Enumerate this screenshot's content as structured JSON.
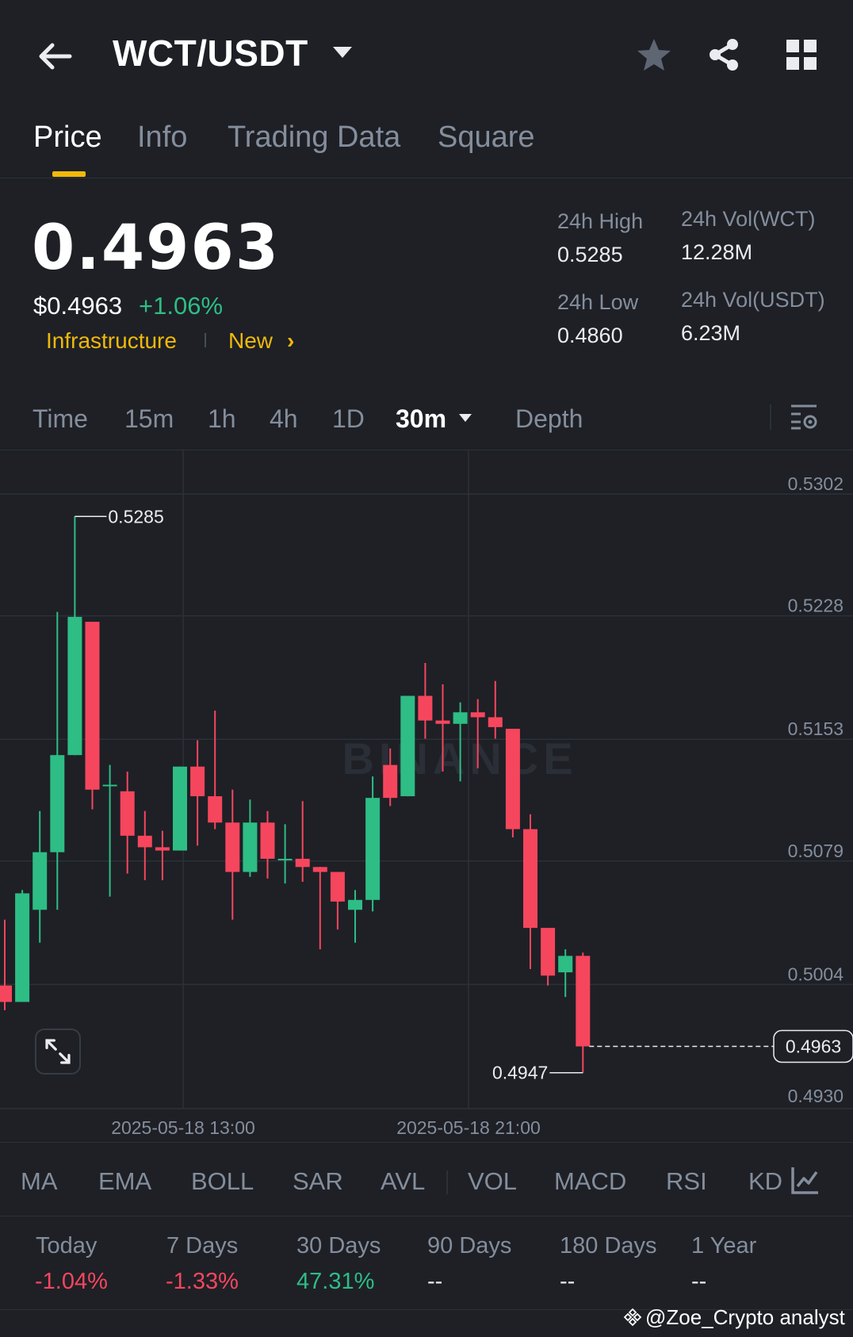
{
  "header": {
    "pair": "WCT/USDT",
    "icons": [
      "back-arrow-icon",
      "caret-down-icon",
      "star-icon",
      "share-icon",
      "grid-icon"
    ]
  },
  "tabs": [
    {
      "label": "Price",
      "active": true
    },
    {
      "label": "Info",
      "active": false
    },
    {
      "label": "Trading Data",
      "active": false
    },
    {
      "label": "Square",
      "active": false
    }
  ],
  "ticker": {
    "last_price": "0.4963",
    "usd_price": "$0.4963",
    "change_pct": "+1.06%",
    "tags": [
      "Infrastructure",
      "New"
    ],
    "chevron": "›",
    "high_label": "24h High",
    "high_value": "0.5285",
    "low_label": "24h Low",
    "low_value": "0.4860",
    "vol_wct_label": "24h Vol(WCT)",
    "vol_wct_value": "12.28M",
    "vol_usdt_label": "24h Vol(USDT)",
    "vol_usdt_value": "6.23M"
  },
  "intervals": [
    {
      "label": "Time",
      "active": false
    },
    {
      "label": "15m",
      "active": false
    },
    {
      "label": "1h",
      "active": false
    },
    {
      "label": "4h",
      "active": false
    },
    {
      "label": "1D",
      "active": false
    },
    {
      "label": "30m",
      "active": true
    },
    {
      "label": "Depth",
      "active": false
    }
  ],
  "chart_data": {
    "type": "candlestick",
    "interval": "30m",
    "y_ticks": [
      "0.5302",
      "0.5228",
      "0.5153",
      "0.5079",
      "0.5004",
      "0.4930"
    ],
    "ylim": [
      0.493,
      0.5302
    ],
    "x_ticks": [
      "2025-05-18 13:00",
      "2025-05-18 21:00"
    ],
    "current_price": "0.4963",
    "high_marker": "0.5285",
    "low_marker": "0.4947",
    "watermark": "BINANCE",
    "up_color": "#2ebd85",
    "down_color": "#f6465d",
    "candles": [
      {
        "o": 0.5,
        "h": 0.504,
        "l": 0.4985,
        "c": 0.499
      },
      {
        "o": 0.499,
        "h": 0.5058,
        "l": 0.499,
        "c": 0.5056
      },
      {
        "o": 0.5046,
        "h": 0.5106,
        "l": 0.5026,
        "c": 0.5081
      },
      {
        "o": 0.5081,
        "h": 0.5227,
        "l": 0.5046,
        "c": 0.514
      },
      {
        "o": 0.514,
        "h": 0.5285,
        "l": 0.514,
        "c": 0.5224
      },
      {
        "o": 0.5221,
        "h": 0.5221,
        "l": 0.5107,
        "c": 0.5119
      },
      {
        "o": 0.5122,
        "h": 0.5134,
        "l": 0.5054,
        "c": 0.5122
      },
      {
        "o": 0.5118,
        "h": 0.513,
        "l": 0.5068,
        "c": 0.5091
      },
      {
        "o": 0.5091,
        "h": 0.5106,
        "l": 0.5064,
        "c": 0.5084
      },
      {
        "o": 0.5084,
        "h": 0.5094,
        "l": 0.5064,
        "c": 0.5082
      },
      {
        "o": 0.5082,
        "h": 0.5133,
        "l": 0.5082,
        "c": 0.5133
      },
      {
        "o": 0.5133,
        "h": 0.5149,
        "l": 0.5085,
        "c": 0.5115
      },
      {
        "o": 0.5115,
        "h": 0.5167,
        "l": 0.5095,
        "c": 0.5099
      },
      {
        "o": 0.5099,
        "h": 0.5119,
        "l": 0.504,
        "c": 0.5069
      },
      {
        "o": 0.5069,
        "h": 0.5113,
        "l": 0.5066,
        "c": 0.5099
      },
      {
        "o": 0.5099,
        "h": 0.5106,
        "l": 0.5065,
        "c": 0.5077
      },
      {
        "o": 0.5077,
        "h": 0.5098,
        "l": 0.5062,
        "c": 0.5077
      },
      {
        "o": 0.5077,
        "h": 0.5112,
        "l": 0.5063,
        "c": 0.5072
      },
      {
        "o": 0.5072,
        "h": 0.5072,
        "l": 0.5022,
        "c": 0.5069
      },
      {
        "o": 0.5069,
        "h": 0.5069,
        "l": 0.5034,
        "c": 0.5051
      },
      {
        "o": 0.5046,
        "h": 0.5058,
        "l": 0.5026,
        "c": 0.5052
      },
      {
        "o": 0.5052,
        "h": 0.5127,
        "l": 0.5045,
        "c": 0.5114
      },
      {
        "o": 0.5134,
        "h": 0.5144,
        "l": 0.5109,
        "c": 0.5114
      },
      {
        "o": 0.5115,
        "h": 0.5176,
        "l": 0.5115,
        "c": 0.5176
      },
      {
        "o": 0.5176,
        "h": 0.5196,
        "l": 0.515,
        "c": 0.5161
      },
      {
        "o": 0.5161,
        "h": 0.5183,
        "l": 0.513,
        "c": 0.5159
      },
      {
        "o": 0.5159,
        "h": 0.5172,
        "l": 0.5124,
        "c": 0.5166
      },
      {
        "o": 0.5166,
        "h": 0.5174,
        "l": 0.5132,
        "c": 0.5163
      },
      {
        "o": 0.5163,
        "h": 0.5185,
        "l": 0.515,
        "c": 0.5157
      },
      {
        "o": 0.5156,
        "h": 0.5156,
        "l": 0.509,
        "c": 0.5095
      },
      {
        "o": 0.5095,
        "h": 0.5104,
        "l": 0.501,
        "c": 0.5035
      },
      {
        "o": 0.5035,
        "h": 0.5035,
        "l": 0.5,
        "c": 0.5006
      },
      {
        "o": 0.5008,
        "h": 0.5022,
        "l": 0.4993,
        "c": 0.5018
      },
      {
        "o": 0.5018,
        "h": 0.502,
        "l": 0.4947,
        "c": 0.4963
      }
    ]
  },
  "indicators": [
    "MA",
    "EMA",
    "BOLL",
    "SAR",
    "AVL",
    "VOL",
    "MACD",
    "RSI",
    "KD"
  ],
  "performance": [
    {
      "label": "Today",
      "value": "-1.04%",
      "sign": "neg"
    },
    {
      "label": "7 Days",
      "value": "-1.33%",
      "sign": "neg"
    },
    {
      "label": "30 Days",
      "value": "47.31%",
      "sign": "pos"
    },
    {
      "label": "90 Days",
      "value": "--",
      "sign": "none"
    },
    {
      "label": "180 Days",
      "value": "--",
      "sign": "none"
    },
    {
      "label": "1 Year",
      "value": "--",
      "sign": "none"
    }
  ],
  "watermark_text": "@Zoe_Crypto analyst"
}
